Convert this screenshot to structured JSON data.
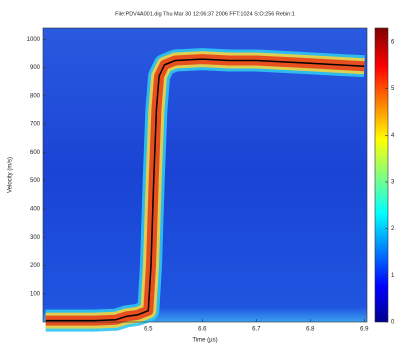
{
  "chart_data": {
    "type": "spectrogram",
    "title": "File:PDV4A001.dig Thu Mar 30 12:06:37 2006 FFT:1024 S:O:256 Rebin:1",
    "x_label": "Time (µs)",
    "y_label": "Velocity (m/s)",
    "xlim": [
      6.305,
      6.905
    ],
    "xticks": [
      6.4,
      6.5,
      6.6,
      6.7,
      6.8,
      6.9
    ],
    "ylim": [
      0,
      1040
    ],
    "yticks": [
      100,
      200,
      300,
      400,
      500,
      600,
      700,
      800,
      900,
      1000
    ],
    "clim": [
      0,
      6.3
    ],
    "cticks": [
      0,
      1,
      2,
      3,
      4,
      5,
      6
    ],
    "series": [
      {
        "name": "Velocity",
        "color": "#000000",
        "x": [
          6.31,
          6.35,
          6.4,
          6.44,
          6.46,
          6.48,
          6.5,
          6.505,
          6.51,
          6.515,
          6.52,
          6.53,
          6.55,
          6.6,
          6.65,
          6.7,
          6.75,
          6.8,
          6.85,
          6.9
        ],
        "values": [
          5,
          5,
          5,
          8,
          20,
          25,
          40,
          200,
          500,
          750,
          870,
          910,
          925,
          930,
          925,
          925,
          920,
          915,
          910,
          905
        ]
      }
    ]
  }
}
